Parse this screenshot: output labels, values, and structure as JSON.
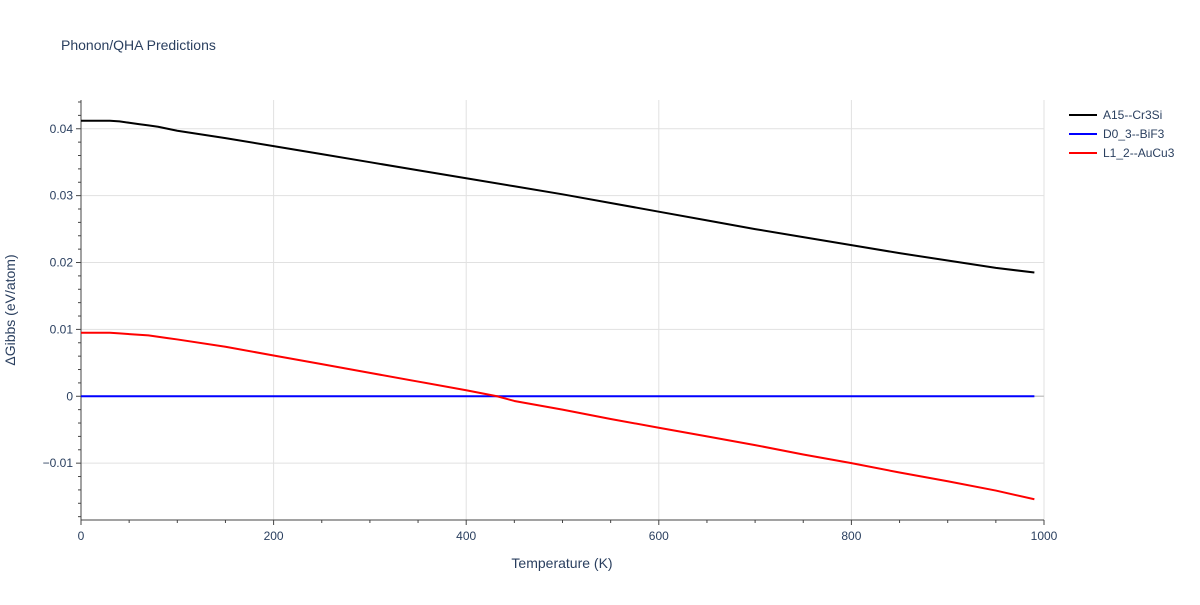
{
  "chart_data": {
    "type": "line",
    "title": "Phonon/QHA Predictions",
    "xlabel": "Temperature (K)",
    "ylabel": "ΔGibbs (eV/atom)",
    "xlim": [
      0,
      1000
    ],
    "ylim": [
      -0.0185,
      0.0443
    ],
    "xticks": [
      0,
      200,
      400,
      600,
      800,
      1000
    ],
    "xtick_labels": [
      "0",
      "200",
      "400",
      "600",
      "800",
      "1000"
    ],
    "yticks": [
      -0.01,
      0,
      0.01,
      0.02,
      0.03,
      0.04
    ],
    "ytick_labels": [
      "−0.01",
      "0",
      "0.01",
      "0.02",
      "0.03",
      "0.04"
    ],
    "grid": true,
    "legend_position": "top-right",
    "series": [
      {
        "name": "A15--Cr3Si",
        "color": "#000000",
        "x": [
          0,
          10,
          20,
          30,
          40,
          50,
          60,
          70,
          80,
          90,
          100,
          150,
          200,
          250,
          300,
          350,
          400,
          450,
          500,
          550,
          600,
          650,
          700,
          750,
          800,
          850,
          900,
          950,
          990
        ],
        "y": [
          0.0412,
          0.0412,
          0.0412,
          0.0412,
          0.0411,
          0.0409,
          0.0407,
          0.0405,
          0.0403,
          0.04,
          0.0397,
          0.0386,
          0.0374,
          0.0362,
          0.035,
          0.0338,
          0.0326,
          0.0314,
          0.0302,
          0.0289,
          0.0276,
          0.0263,
          0.025,
          0.0238,
          0.0226,
          0.0214,
          0.0203,
          0.0192,
          0.0185
        ]
      },
      {
        "name": "D0_3--BiF3",
        "color": "#0000ff",
        "x": [
          0,
          990
        ],
        "y": [
          0,
          0
        ]
      },
      {
        "name": "L1_2--AuCu3",
        "color": "#ff0000",
        "x": [
          0,
          10,
          20,
          30,
          40,
          50,
          60,
          70,
          80,
          90,
          100,
          150,
          200,
          250,
          300,
          350,
          400,
          432,
          450,
          500,
          550,
          600,
          650,
          700,
          750,
          800,
          850,
          900,
          950,
          990
        ],
        "y": [
          0.0095,
          0.0095,
          0.0095,
          0.0095,
          0.0094,
          0.0093,
          0.0092,
          0.0091,
          0.0089,
          0.0087,
          0.0085,
          0.0074,
          0.0061,
          0.0048,
          0.0035,
          0.0022,
          0.0009,
          0.0,
          -0.0007,
          -0.002,
          -0.0034,
          -0.0047,
          -0.006,
          -0.0073,
          -0.0087,
          -0.01,
          -0.0114,
          -0.0127,
          -0.0141,
          -0.0154
        ]
      }
    ]
  }
}
